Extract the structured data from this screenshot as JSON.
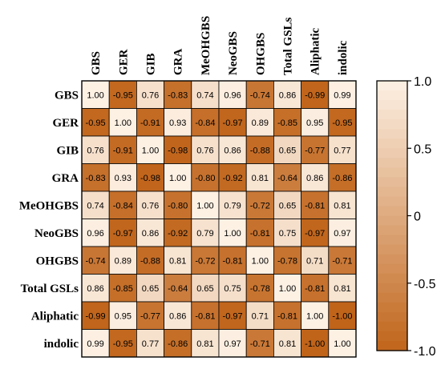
{
  "chart_data": {
    "type": "heatmap",
    "title": "",
    "row_labels": [
      "GBS",
      "GER",
      "GIB",
      "GRA",
      "MeOHGBS",
      "NeoGBS",
      "OHGBS",
      "Total GSLs",
      "Aliphatic",
      "indolic"
    ],
    "col_labels": [
      "GBS",
      "GER",
      "GIB",
      "GRA",
      "MeOHGBS",
      "NeoGBS",
      "OHGBS",
      "Total GSLs",
      "Aliphatic",
      "indolic"
    ],
    "display_values": [
      [
        "1.00",
        "-0.95",
        "0.76",
        "-0.83",
        "0.74",
        "0.96",
        "-0.74",
        "0.86",
        "-0.99",
        "0.99"
      ],
      [
        "-0.95",
        "1.00",
        "-0.91",
        "0.93",
        "-0.84",
        "-0.97",
        "0.89",
        "-0.85",
        "0.95",
        "-0.95"
      ],
      [
        "0.76",
        "-0.91",
        "1.00",
        "-0.98",
        "0.76",
        "0.86",
        "-0.88",
        "0.65",
        "-0.77",
        "0.77"
      ],
      [
        "-0.83",
        "0.93",
        "-0.98",
        "1.00",
        "-0.80",
        "-0.92",
        "0.81",
        "-0.64",
        "0.86",
        "-0.86"
      ],
      [
        "0.74",
        "-0.84",
        "0.76",
        "-0.80",
        "1.00",
        "0.79",
        "-0.72",
        "0.65",
        "-0.81",
        "0.81"
      ],
      [
        "0.96",
        "-0.97",
        "0.86",
        "-0.92",
        "0.79",
        "1.00",
        "-0.81",
        "0.75",
        "-0.97",
        "0.97"
      ],
      [
        "-0.74",
        "0.89",
        "-0.88",
        "0.81",
        "-0.72",
        "-0.81",
        "1.00",
        "-0.78",
        "0.71",
        "-0.71"
      ],
      [
        "0.86",
        "-0.85",
        "0.65",
        "-0.64",
        "0.65",
        "0.75",
        "-0.78",
        "1.00",
        "-0.81",
        "0.81"
      ],
      [
        "-0.99",
        "0.95",
        "-0.77",
        "0.86",
        "-0.81",
        "-0.97",
        "0.71",
        "-0.81",
        "1.00",
        "-1.00"
      ],
      [
        "0.99",
        "-0.95",
        "0.77",
        "-0.86",
        "0.81",
        "0.97",
        "-0.71",
        "0.81",
        "-1.00",
        "1.00"
      ]
    ],
    "colorbar": {
      "range": [
        -1.0,
        1.0
      ],
      "ticks": [
        1.0,
        0.5,
        0,
        -0.5,
        -1.0
      ],
      "tick_labels": [
        "1.0",
        "0.5",
        "0",
        "-0.5",
        "-1.0"
      ],
      "high_color": "#fdf1e4",
      "low_color": "#c0641a"
    }
  }
}
